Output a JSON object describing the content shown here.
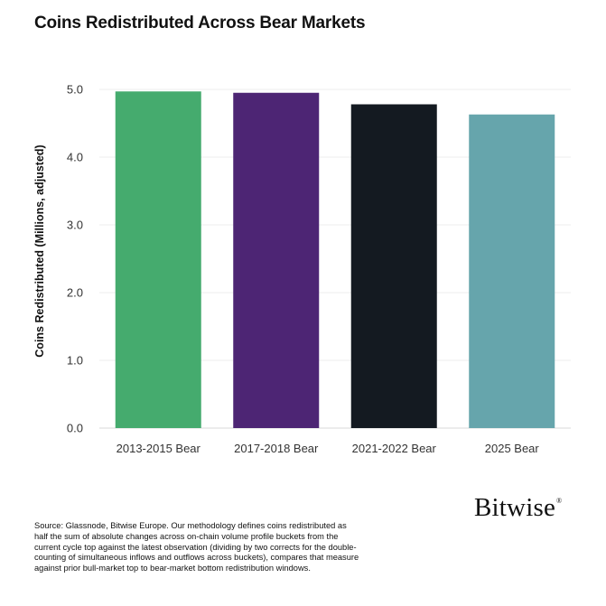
{
  "chart_data": {
    "type": "bar",
    "title": "Coins Redistributed Across Bear Markets",
    "ylabel": "Coins Redistributed (Millions, adjusted)",
    "xlabel": "",
    "categories": [
      "2013-2015 Bear",
      "2017-2018 Bear",
      "2021-2022 Bear",
      "2025 Bear"
    ],
    "values": [
      4.97,
      4.95,
      4.78,
      4.63
    ],
    "colors": [
      "#45ab6e",
      "#4d2574",
      "#141a21",
      "#66a5ac"
    ],
    "ylim": [
      0,
      5.0
    ],
    "yticks": [
      "0.0",
      "1.0",
      "2.0",
      "3.0",
      "4.0",
      "5.0"
    ],
    "grid": true
  },
  "branding": {
    "logo_text": "Bitwise",
    "registered_mark": "®"
  },
  "footnote": "Source: Glassnode, Bitwise Europe. Our methodology defines coins redistributed as half the sum of absolute changes across on-chain volume profile buckets from the current cycle top against the latest observation (dividing by two corrects for the double-counting of simultaneous inflows and outflows across buckets), compares that measure against prior bull-market top to bear-market bottom redistribution windows."
}
